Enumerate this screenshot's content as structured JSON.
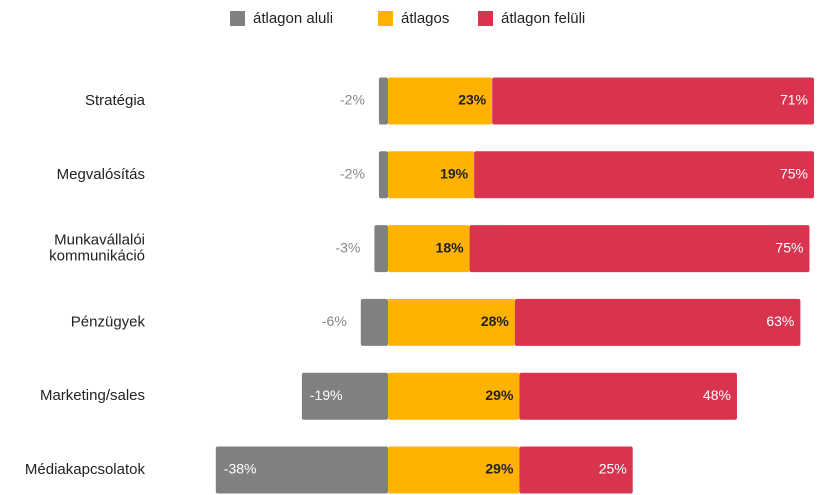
{
  "chart_data": {
    "type": "diverging_bar",
    "categories": [
      "Stratégia",
      "Megvalósítás",
      "Munkavállalói kommunikáció",
      "Pénzügyek",
      "Marketing/sales",
      "Médiakapcsolatok"
    ],
    "series": [
      {
        "name": "átlagon aluli",
        "color": "#808080",
        "values": [
          -2,
          -2,
          -3,
          -6,
          -19,
          -38
        ],
        "value_labels": [
          "-2%",
          "-2%",
          "-3%",
          "-6%",
          "-19%",
          "-38%"
        ]
      },
      {
        "name": "átlagos",
        "color": "#FFB300",
        "values": [
          23,
          19,
          18,
          28,
          29,
          29
        ],
        "value_labels": [
          "23%",
          "19%",
          "18%",
          "28%",
          "29%",
          "29%"
        ]
      },
      {
        "name": "átlagon felüli",
        "color": "#D9344F",
        "values": [
          71,
          75,
          75,
          63,
          48,
          25
        ],
        "value_labels": [
          "71%",
          "75%",
          "75%",
          "63%",
          "48%",
          "25%"
        ]
      }
    ],
    "legend": "top"
  }
}
